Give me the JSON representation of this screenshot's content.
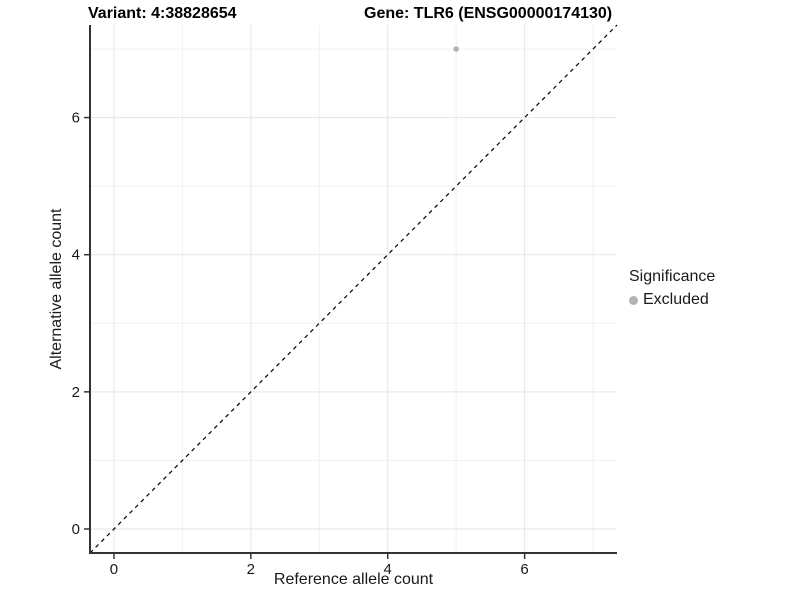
{
  "header": {
    "title_left": "Variant: 4:38828654",
    "title_right": "Gene: TLR6 (ENSG00000174130)"
  },
  "chart_data": {
    "type": "scatter",
    "xlabel": "Reference allele count",
    "ylabel": "Alternative allele count",
    "xlim": [
      -0.35,
      7.35
    ],
    "ylim": [
      -0.35,
      7.35
    ],
    "x_major_ticks": [
      0,
      2,
      4,
      6
    ],
    "y_major_ticks": [
      0,
      2,
      4,
      6
    ],
    "x_minor_ticks": [
      1,
      3,
      5,
      7
    ],
    "y_minor_ticks": [
      1,
      3,
      5,
      7
    ],
    "grid": "on",
    "series": [
      {
        "name": "Excluded",
        "points": [
          {
            "x": 5,
            "y": 7
          }
        ],
        "color": "#b3b3b3"
      }
    ],
    "identity_line": {
      "style": "dashed",
      "from": [
        -0.35,
        -0.35
      ],
      "to": [
        7.35,
        7.35
      ],
      "color": "#000000"
    },
    "legend": {
      "title": "Significance",
      "position": "right",
      "entries": [
        {
          "label": "Excluded",
          "color": "#b3b3b3"
        }
      ]
    },
    "colors": {
      "grid_major": "#e5e5e5",
      "grid_minor": "#f0f0f0",
      "axis_line": "#333333",
      "tick_mark": "#333333",
      "tick_text": "#1a1a1a"
    }
  }
}
